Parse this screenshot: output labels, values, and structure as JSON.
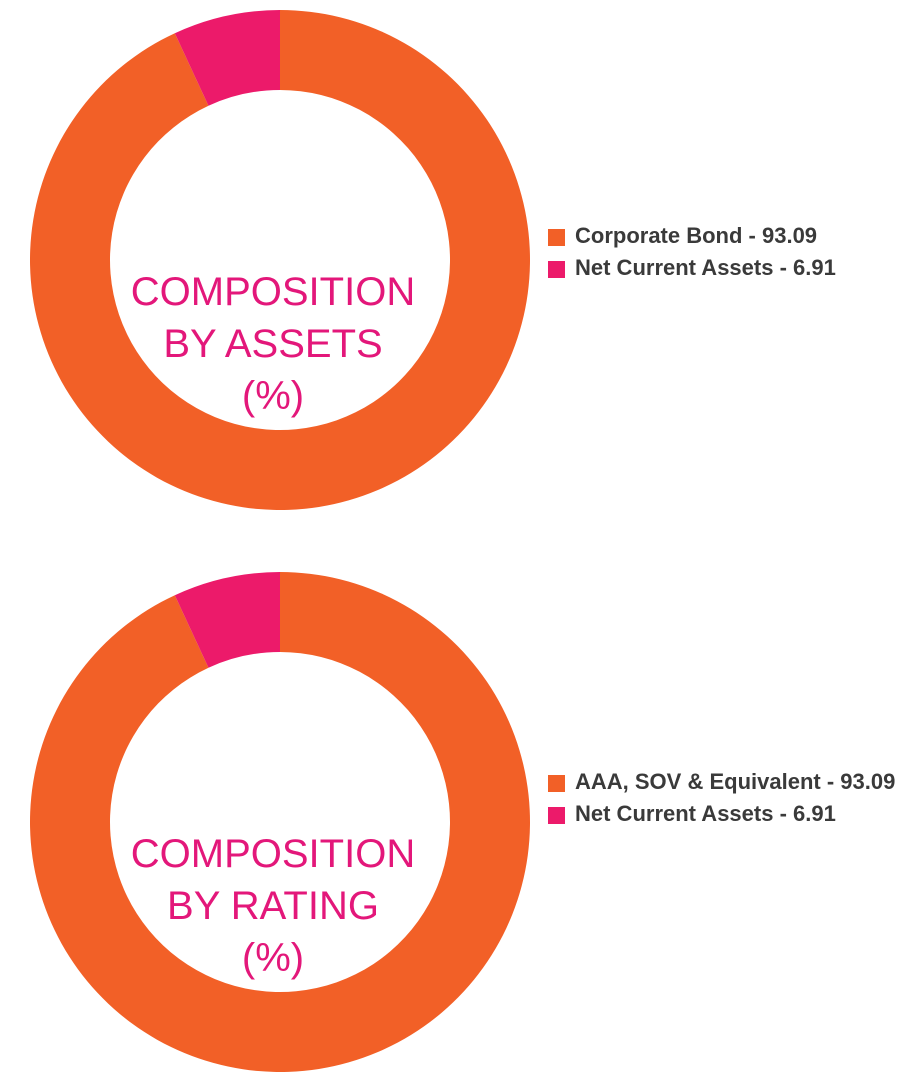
{
  "chart_data": [
    {
      "type": "pie",
      "title_lines": [
        "COMPOSITION",
        "BY ASSETS",
        "(%)"
      ],
      "slices": [
        {
          "label": "Corporate Bond",
          "value": 93.09,
          "color": "#f26027"
        },
        {
          "label": "Net Current Assets",
          "value": 6.91,
          "color": "#ec1a6a"
        }
      ],
      "legend": [
        {
          "text": "Corporate Bond - 93.09",
          "color": "#f26027"
        },
        {
          "text": "Net Current Assets - 6.91",
          "color": "#ec1a6a"
        }
      ],
      "legend_position": "right"
    },
    {
      "type": "pie",
      "title_lines": [
        "COMPOSITION",
        "BY RATING",
        "(%)"
      ],
      "slices": [
        {
          "label": "AAA, SOV & Equivalent",
          "value": 93.09,
          "color": "#f26027"
        },
        {
          "label": "Net Current Assets",
          "value": 6.91,
          "color": "#ec1a6a"
        }
      ],
      "legend": [
        {
          "text": "AAA, SOV & Equivalent - 93.09",
          "color": "#f26027"
        },
        {
          "text": "Net Current Assets - 6.91",
          "color": "#ec1a6a"
        }
      ],
      "legend_position": "right"
    }
  ],
  "colors": {
    "title": "#e3177a",
    "legend_text": "#3a3a3a"
  }
}
